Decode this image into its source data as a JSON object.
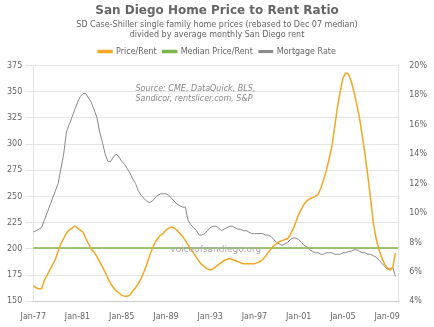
{
  "chart_data": {
    "type": "line",
    "title": "San Diego Home Price to Rent Ratio",
    "subtitle": "SD Case-Shiller single family home prices (rebased to Dec 07 median)\ndivided by average monthly San Diego rent",
    "annotations": [
      "Source: CME, DataQuick, BLS,\nSandicor, rentslicer.com, S&P",
      "voiceofsandiego.org"
    ],
    "x": [
      1977.0,
      1977.25,
      1977.5,
      1977.75,
      1978.0,
      1978.25,
      1978.5,
      1978.75,
      1979.0,
      1979.25,
      1979.5,
      1979.75,
      1980.0,
      1980.25,
      1980.5,
      1980.75,
      1981.0,
      1981.25,
      1981.5,
      1981.75,
      1982.0,
      1982.25,
      1982.5,
      1982.75,
      1983.0,
      1983.25,
      1983.5,
      1983.75,
      1984.0,
      1984.25,
      1984.5,
      1984.75,
      1985.0,
      1985.25,
      1985.5,
      1985.75,
      1986.0,
      1986.25,
      1986.5,
      1986.75,
      1987.0,
      1987.25,
      1987.5,
      1987.75,
      1988.0,
      1988.25,
      1988.5,
      1988.75,
      1989.0,
      1989.25,
      1989.5,
      1989.75,
      1990.0,
      1990.25,
      1990.5,
      1990.75,
      1991.0,
      1991.25,
      1991.5,
      1991.75,
      1992.0,
      1992.25,
      1992.5,
      1992.75,
      1993.0,
      1993.25,
      1993.5,
      1993.75,
      1994.0,
      1994.25,
      1994.5,
      1994.75,
      1995.0,
      1995.25,
      1995.5,
      1995.75,
      1996.0,
      1996.25,
      1996.5,
      1996.75,
      1997.0,
      1997.25,
      1997.5,
      1997.75,
      1998.0,
      1998.25,
      1998.5,
      1998.75,
      1999.0,
      1999.25,
      1999.5,
      1999.75,
      2000.0,
      2000.25,
      2000.5,
      2000.75,
      2001.0,
      2001.25,
      2001.5,
      2001.75,
      2002.0,
      2002.25,
      2002.5,
      2002.75,
      2003.0,
      2003.25,
      2003.5,
      2003.75,
      2004.0,
      2004.25,
      2004.5,
      2004.75,
      2005.0,
      2005.25,
      2005.5,
      2005.75,
      2006.0,
      2006.25,
      2006.5,
      2006.75,
      2007.0,
      2007.25,
      2007.5,
      2007.75,
      2008.0,
      2008.25,
      2008.5,
      2008.75,
      2009.0,
      2009.25,
      2009.5,
      2009.75
    ],
    "series": [
      {
        "name": "Price/Rent",
        "color": "#F5A623",
        "values": [
          165,
          163,
          162,
          162,
          170,
          175,
          180,
          185,
          190,
          198,
          205,
          210,
          215,
          218,
          220,
          222,
          220,
          218,
          216,
          210,
          205,
          200,
          197,
          193,
          188,
          183,
          178,
          172,
          167,
          163,
          160,
          158,
          156,
          155,
          155,
          156,
          160,
          163,
          167,
          172,
          178,
          185,
          193,
          200,
          206,
          210,
          213,
          215,
          218,
          220,
          221,
          220,
          218,
          215,
          212,
          208,
          204,
          200,
          196,
          192,
          188,
          185,
          183,
          181,
          180,
          181,
          183,
          185,
          187,
          189,
          190,
          191,
          190,
          189,
          188,
          187,
          186,
          186,
          186,
          186,
          186,
          187,
          188,
          190,
          193,
          197,
          200,
          203,
          205,
          207,
          208,
          209,
          210,
          214,
          219,
          226,
          233,
          238,
          243,
          246,
          248,
          249,
          250,
          252,
          258,
          266,
          275,
          286,
          298,
          316,
          335,
          350,
          363,
          368,
          367,
          360,
          350,
          338,
          325,
          308,
          290,
          270,
          248,
          225,
          210,
          200,
          192,
          186,
          182,
          180,
          182,
          196
        ]
      },
      {
        "name": "Median Price/Rent",
        "color": "#7AB648",
        "x": [
          1977,
          2010
        ],
        "values": [
          201,
          201
        ]
      },
      {
        "name": "Mortgage Rate",
        "color": "#888888",
        "axis": "y2",
        "values": [
          0.087,
          0.088,
          0.089,
          0.09,
          0.095,
          0.1,
          0.105,
          0.11,
          0.115,
          0.12,
          0.13,
          0.14,
          0.155,
          0.16,
          0.165,
          0.17,
          0.175,
          0.179,
          0.181,
          0.181,
          0.178,
          0.175,
          0.17,
          0.165,
          0.155,
          0.148,
          0.14,
          0.135,
          0.135,
          0.138,
          0.14,
          0.138,
          0.135,
          0.133,
          0.13,
          0.127,
          0.123,
          0.12,
          0.115,
          0.112,
          0.11,
          0.108,
          0.107,
          0.108,
          0.11,
          0.112,
          0.113,
          0.113,
          0.113,
          0.112,
          0.11,
          0.108,
          0.106,
          0.105,
          0.104,
          0.104,
          0.095,
          0.092,
          0.09,
          0.088,
          0.085,
          0.085,
          0.086,
          0.088,
          0.09,
          0.091,
          0.091,
          0.09,
          0.088,
          0.089,
          0.09,
          0.091,
          0.091,
          0.09,
          0.089,
          0.089,
          0.088,
          0.088,
          0.087,
          0.086,
          0.086,
          0.086,
          0.086,
          0.086,
          0.085,
          0.085,
          0.084,
          0.082,
          0.08,
          0.079,
          0.078,
          0.079,
          0.08,
          0.082,
          0.083,
          0.083,
          0.082,
          0.08,
          0.078,
          0.077,
          0.075,
          0.074,
          0.073,
          0.073,
          0.072,
          0.072,
          0.073,
          0.073,
          0.073,
          0.072,
          0.072,
          0.072,
          0.073,
          0.073,
          0.074,
          0.074,
          0.075,
          0.075,
          0.074,
          0.073,
          0.073,
          0.072,
          0.072,
          0.071,
          0.07,
          0.068,
          0.066,
          0.064,
          0.062,
          0.062,
          0.063,
          0.057
        ]
      }
    ],
    "xlim": [
      1977,
      2010
    ],
    "xticks": [
      {
        "value": 1977,
        "label": "Jan-77"
      },
      {
        "value": 1981,
        "label": "Jan-81"
      },
      {
        "value": 1985,
        "label": "Jan-85"
      },
      {
        "value": 1989,
        "label": "Jan-89"
      },
      {
        "value": 1993,
        "label": "Jan-93"
      },
      {
        "value": 1997,
        "label": "Jan-97"
      },
      {
        "value": 2001,
        "label": "Jan-01"
      },
      {
        "value": 2005,
        "label": "Jan-05"
      },
      {
        "value": 2009,
        "label": "Jan-09"
      }
    ],
    "ylim": [
      150,
      375
    ],
    "yticks": [
      150,
      175,
      200,
      225,
      250,
      275,
      300,
      325,
      350,
      375
    ],
    "y2lim": [
      0.04,
      0.2
    ],
    "y2ticks": [
      {
        "value": 0.04,
        "label": "4%"
      },
      {
        "value": 0.06,
        "label": "6%"
      },
      {
        "value": 0.08,
        "label": "8%"
      },
      {
        "value": 0.1,
        "label": "10%"
      },
      {
        "value": 0.12,
        "label": "12%"
      },
      {
        "value": 0.14,
        "label": "14%"
      },
      {
        "value": 0.16,
        "label": "16%"
      },
      {
        "value": 0.18,
        "label": "18%"
      },
      {
        "value": 0.2,
        "label": "20%"
      }
    ],
    "grid": true,
    "legend": "top"
  }
}
